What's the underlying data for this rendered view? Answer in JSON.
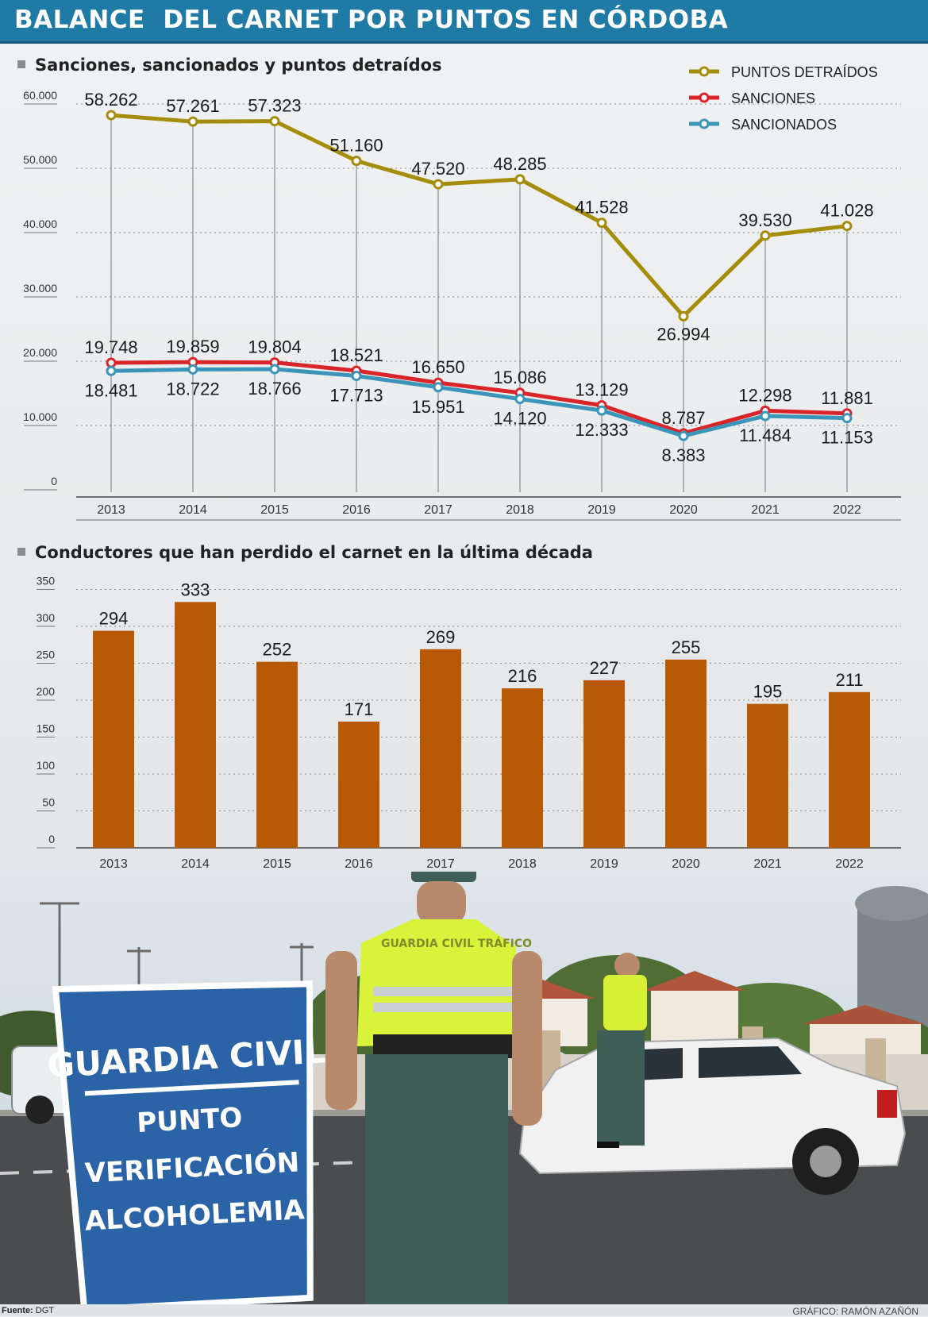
{
  "header": {
    "title": "BALANCE  DEL CARNET POR PUNTOS EN CÓRDOBA"
  },
  "line_section": {
    "title": "Sanciones, sancionados y puntos detraídos"
  },
  "bar_section": {
    "title": "Conductores que han perdido el carnet en la última década"
  },
  "colors": {
    "header_bg": "#1f7aa6",
    "puntos": "#a48d0b",
    "sanciones": "#d9242a",
    "sancionados": "#3a95b8",
    "bars": "#b85a05"
  },
  "chart_data": [
    {
      "type": "line",
      "title": "Sanciones, sancionados y puntos detraídos",
      "categories": [
        "2013",
        "2014",
        "2015",
        "2016",
        "2017",
        "2018",
        "2019",
        "2020",
        "2021",
        "2022"
      ],
      "y_ticks": [
        "0",
        "10.000",
        "20.000",
        "30.000",
        "40.000",
        "50.000",
        "60.000"
      ],
      "ylim": [
        0,
        60000
      ],
      "legend_position": "top-right",
      "series": [
        {
          "name": "PUNTOS DETRAÍDOS",
          "color": "#a48d0b",
          "values": [
            58262,
            57261,
            57323,
            51160,
            47520,
            48285,
            41528,
            26994,
            39530,
            41028
          ],
          "labels": [
            "58.262",
            "57.261",
            "57.323",
            "51.160",
            "47.520",
            "48.285",
            "41.528",
            "26.994",
            "39.530",
            "41.028"
          ]
        },
        {
          "name": "SANCIONES",
          "color": "#d9242a",
          "values": [
            19748,
            19859,
            19804,
            18521,
            16650,
            15086,
            13129,
            8787,
            12298,
            11881
          ],
          "labels": [
            "19.748",
            "19.859",
            "19.804",
            "18.521",
            "16.650",
            "15.086",
            "13.129",
            "8.787",
            "12.298",
            "11.881"
          ]
        },
        {
          "name": "SANCIONADOS",
          "color": "#3a95b8",
          "values": [
            18481,
            18722,
            18766,
            17713,
            15951,
            14120,
            12333,
            8383,
            11484,
            11153
          ],
          "labels": [
            "18.481",
            "18.722",
            "18.766",
            "17.713",
            "15.951",
            "14.120",
            "12.333",
            "8.383",
            "11.484",
            "11.153"
          ]
        }
      ]
    },
    {
      "type": "bar",
      "title": "Conductores que han perdido el carnet en la última década",
      "categories": [
        "2013",
        "2014",
        "2015",
        "2016",
        "2017",
        "2018",
        "2019",
        "2020",
        "2021",
        "2022"
      ],
      "values": [
        294,
        333,
        252,
        171,
        269,
        216,
        227,
        255,
        195,
        211
      ],
      "y_ticks": [
        "0",
        "50",
        "100",
        "150",
        "200",
        "250",
        "300",
        "350"
      ],
      "ylim": [
        0,
        350
      ],
      "color": "#b85a05"
    }
  ],
  "photo": {
    "sign_line1": "GUARDIA CIVIL",
    "sign_line2": "PUNTO",
    "sign_line3": "VERIFICACIÓN",
    "sign_line4": "ALCOHOLEMIA",
    "vest_text": "GUARDIA CIVIL TRÁFICO"
  },
  "footer": {
    "source_label": "Fuente:",
    "source_value": "DGT",
    "credit": "GRÁFICO: RAMÓN AZAÑÓN"
  }
}
